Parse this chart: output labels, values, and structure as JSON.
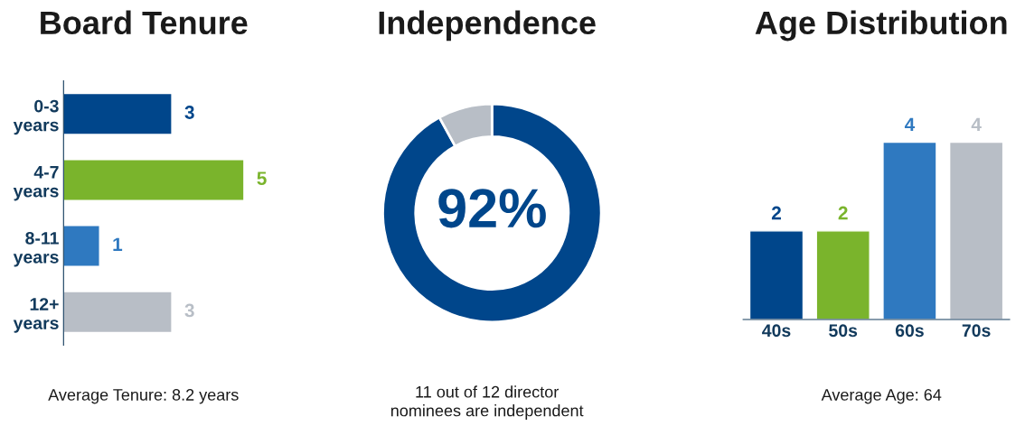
{
  "chart_data": [
    {
      "type": "bar",
      "orientation": "horizontal",
      "title": "Board Tenure",
      "categories": [
        "0-3\nyears",
        "4-7\nyears",
        "8-11\nyears",
        "12+\nyears"
      ],
      "values": [
        3,
        5,
        1,
        3
      ],
      "colors": [
        "#00468b",
        "#7ab42c",
        "#2f79c0",
        "#b8bec6"
      ],
      "data_labels": true,
      "annotations": [
        "Average Tenure: 8.2 years"
      ]
    },
    {
      "type": "donut",
      "title": "Independence",
      "categories": [
        null,
        null
      ],
      "values": [
        92,
        8
      ],
      "colors": [
        "#00468b",
        "#b8bec6"
      ],
      "annotations": [
        "92%",
        "11 out of 12 director\nnominees are independent"
      ]
    },
    {
      "type": "bar",
      "title": "Age Distribution",
      "categories": [
        "40s",
        "50s",
        "60s",
        "70s"
      ],
      "values": [
        2,
        2,
        4,
        4
      ],
      "colors": [
        "#00468b",
        "#7ab42c",
        "#2f79c0",
        "#b8bec6"
      ],
      "data_labels": true,
      "annotations": [
        "Average Age: 64"
      ]
    }
  ]
}
